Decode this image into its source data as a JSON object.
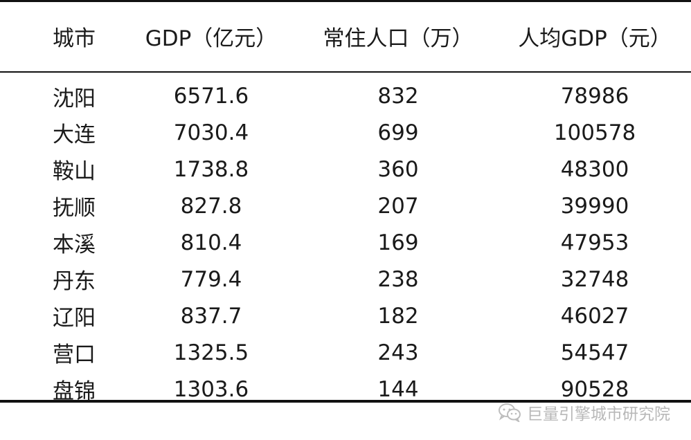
{
  "table": {
    "columns": [
      "城市",
      "GDP（亿元）",
      "常住人口（万）",
      "人均GDP（元）"
    ],
    "rows": [
      {
        "city": "沈阳",
        "gdp": "6571.6",
        "population": "832",
        "gdp_per_capita": "78986"
      },
      {
        "city": "大连",
        "gdp": "7030.4",
        "population": "699",
        "gdp_per_capita": "100578"
      },
      {
        "city": "鞍山",
        "gdp": "1738.8",
        "population": "360",
        "gdp_per_capita": "48300"
      },
      {
        "city": "抚顺",
        "gdp": "827.8",
        "population": "207",
        "gdp_per_capita": "39990"
      },
      {
        "city": "本溪",
        "gdp": "810.4",
        "population": "169",
        "gdp_per_capita": "47953"
      },
      {
        "city": "丹东",
        "gdp": "779.4",
        "population": "238",
        "gdp_per_capita": "32748"
      },
      {
        "city": "辽阳",
        "gdp": "837.7",
        "population": "182",
        "gdp_per_capita": "46027"
      },
      {
        "city": "营口",
        "gdp": "1325.5",
        "population": "243",
        "gdp_per_capita": "54547"
      },
      {
        "city": "盘锦",
        "gdp": "1303.6",
        "population": "144",
        "gdp_per_capita": "90528"
      }
    ]
  },
  "watermark": {
    "icon": "wechat-icon",
    "text": "巨量引擎城市研究院"
  }
}
